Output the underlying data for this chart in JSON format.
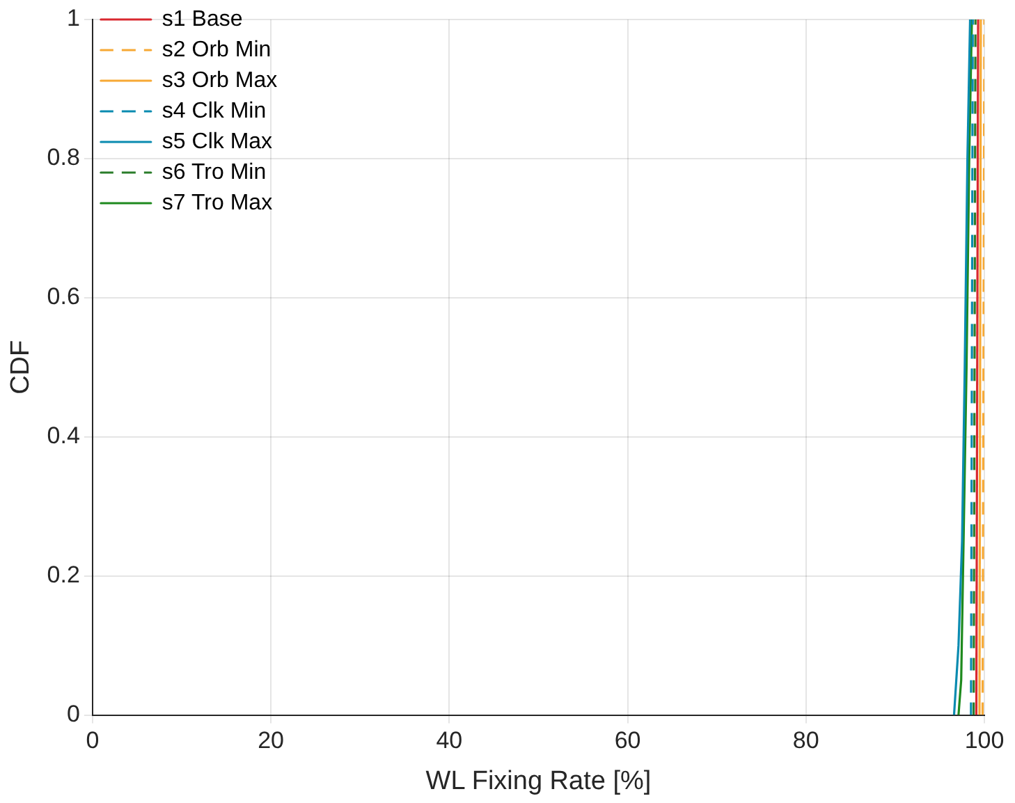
{
  "chart_data": {
    "type": "line",
    "xlabel": "WL Fixing Rate [%]",
    "ylabel": "CDF",
    "xlim": [
      0,
      100
    ],
    "ylim": [
      0,
      1
    ],
    "xticks": [
      0,
      20,
      40,
      60,
      80,
      100
    ],
    "yticks": [
      0,
      0.2,
      0.4,
      0.6,
      0.8,
      1
    ],
    "grid": true,
    "legend": "top left",
    "marker": "none",
    "series": [
      {
        "name": "s1 Base",
        "color": "#d9282f",
        "line_style": "solid",
        "x": [
          99.1,
          99.3
        ],
        "values": [
          0,
          1
        ]
      },
      {
        "name": "s2 Orb Min",
        "color": "#f7a935",
        "line_style": "dashed",
        "x": [
          99.8,
          100
        ],
        "values": [
          0,
          1
        ]
      },
      {
        "name": "s3 Orb Max",
        "color": "#f7a935",
        "line_style": "solid",
        "x": [
          99.45,
          99.6
        ],
        "values": [
          0,
          1
        ]
      },
      {
        "name": "s4 Clk Min",
        "color": "#0a8bb0",
        "line_style": "dashed",
        "x": [
          98.5,
          98.7
        ],
        "values": [
          0,
          1
        ]
      },
      {
        "name": "s5 Clk Max",
        "color": "#0a8bb0",
        "line_style": "solid",
        "x": [
          96.6,
          96.8,
          97.1,
          97.5,
          97.8,
          98.1,
          98.4
        ],
        "values": [
          0,
          0.04,
          0.1,
          0.25,
          0.5,
          0.8,
          1
        ]
      },
      {
        "name": "s6 Tro Min",
        "color": "#2a7d2a",
        "line_style": "dashed",
        "x": [
          98.8,
          99.0
        ],
        "values": [
          0,
          1
        ]
      },
      {
        "name": "s7 Tro Max",
        "color": "#1e8a1e",
        "line_style": "solid",
        "x": [
          97.1,
          97.4,
          97.6,
          98.0,
          98.3,
          98.6
        ],
        "values": [
          0,
          0.05,
          0.2,
          0.5,
          0.8,
          1
        ]
      }
    ]
  }
}
